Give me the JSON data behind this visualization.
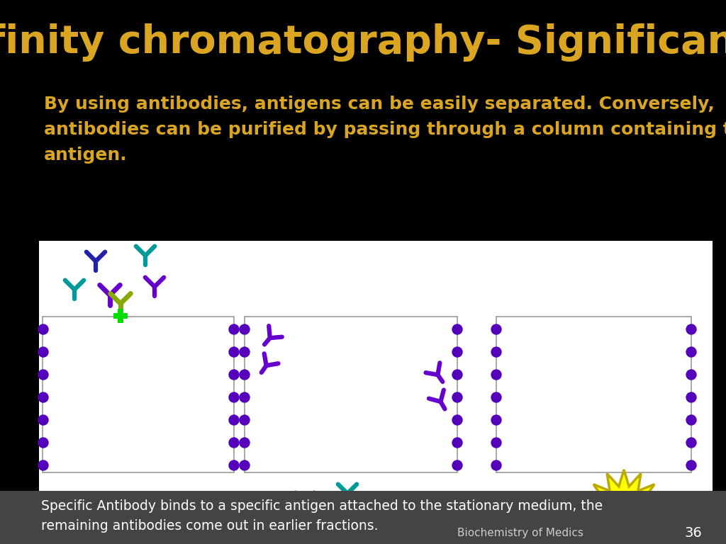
{
  "title": "Affinity chromatography- Significance",
  "title_color": "#DAA520",
  "bg_color": "#000000",
  "body_text_line1": "By using antibodies, antigens can be easily separated. Conversely,",
  "body_text_line2": "antibodies can be purified by passing through a column containing the",
  "body_text_line3": "antigen.",
  "body_text_color": "#DAA520",
  "footer_text1": "Specific Antibody binds to a specific antigen attached to the stationary medium, the",
  "footer_text2": "remaining antibodies come out in earlier fractions.",
  "footer_credit": "Biochemistry of Medics",
  "footer_page": "36",
  "footer_text_color": "#FFFFFF",
  "footer_credit_color": "#CCCCCC",
  "antibody_purple": "#6600CC",
  "antibody_teal": "#009999",
  "antibody_blue": "#2222AA",
  "antibody_green": "#88AA00",
  "bead_color": "#5500BB",
  "cross_color": "#00DD00",
  "explosion_fill": "#FFFF00",
  "explosion_edge": "#BBAA00",
  "white": "#FFFFFF",
  "diagram_bg": "#FFFFFF",
  "footer_bg": "#444444",
  "box_edge": "#999999",
  "black": "#000000"
}
